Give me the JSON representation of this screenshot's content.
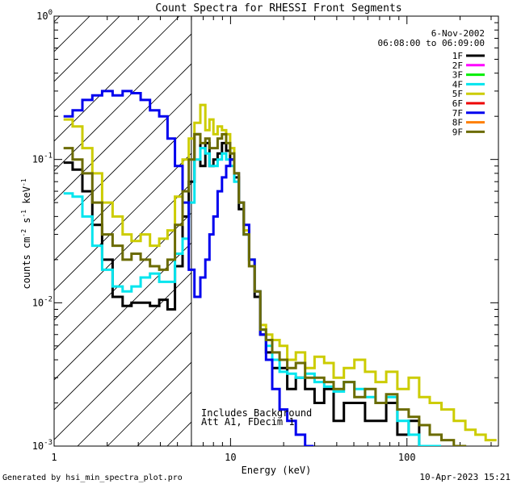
{
  "chart_data": {
    "type": "line",
    "title": "Count Spectra for RHESSI Front Segments",
    "xlabel": "Energy (keV)",
    "ylabel_parts": {
      "counts": "counts cm",
      "cm_exp": "-2",
      "s": " s",
      "s_exp": "-1",
      "kev": " keV",
      "kev_exp": "-1"
    },
    "xscale": "log",
    "yscale": "log",
    "xlim": [
      1,
      330
    ],
    "ylim": [
      0.001,
      1
    ],
    "x_ticks": [
      {
        "value": 1,
        "label": "1"
      },
      {
        "value": 10,
        "label": "10"
      },
      {
        "value": 100,
        "label": "100"
      }
    ],
    "y_ticks": [
      {
        "value": 0.001,
        "base": "10",
        "exp": "-3"
      },
      {
        "value": 0.01,
        "base": "10",
        "exp": "-2"
      },
      {
        "value": 0.1,
        "base": "10",
        "exp": "-1"
      },
      {
        "value": 1,
        "base": "10",
        "exp": "0"
      }
    ],
    "shaded_region": {
      "x_from": 1,
      "x_to": 6,
      "style": "diagonal hatch",
      "boundary_line_at": 6
    },
    "header_lines": [
      "6-Nov-2002",
      "06:08:00 to 06:09:00"
    ],
    "annotations": [
      "Includes Background",
      "Att A1, FDecim 1"
    ],
    "legend_position": "top-right",
    "series": [
      {
        "name": "1F",
        "color": "#000000",
        "x": [
          1.2,
          1.35,
          1.55,
          1.75,
          2.0,
          2.3,
          2.6,
          2.9,
          3.3,
          3.7,
          4.2,
          4.6,
          5.1,
          5.6,
          6.0,
          6.5,
          7.0,
          7.4,
          7.8,
          8.2,
          8.7,
          9.2,
          9.7,
          10.2,
          10.8,
          11.5,
          12.3,
          13.2,
          14.2,
          15.3,
          16.5,
          18.0,
          20,
          22,
          25,
          28,
          32,
          36,
          41,
          47,
          54,
          62,
          71,
          82,
          95,
          110,
          125,
          145
        ],
        "y": [
          0.095,
          0.085,
          0.06,
          0.035,
          0.02,
          0.011,
          0.0095,
          0.01,
          0.01,
          0.0095,
          0.0105,
          0.009,
          0.018,
          0.04,
          0.07,
          0.15,
          0.09,
          0.13,
          0.09,
          0.1,
          0.11,
          0.13,
          0.115,
          0.1,
          0.075,
          0.045,
          0.03,
          0.018,
          0.011,
          0.006,
          0.0045,
          0.0035,
          0.0035,
          0.0025,
          0.003,
          0.0025,
          0.002,
          0.0025,
          0.0015,
          0.002,
          0.002,
          0.0015,
          0.0015,
          0.002,
          0.0012,
          0.0015,
          0.001,
          0.001
        ]
      },
      {
        "name": "2F",
        "color": "#ff00ff",
        "x": [],
        "y": []
      },
      {
        "name": "3F",
        "color": "#00ee00",
        "x": [],
        "y": []
      },
      {
        "name": "4F",
        "color": "#00e5ee",
        "x": [
          1.2,
          1.35,
          1.55,
          1.75,
          2.0,
          2.3,
          2.6,
          2.9,
          3.3,
          3.7,
          4.2,
          4.6,
          5.1,
          5.6,
          6.0,
          6.5,
          7.0,
          7.4,
          7.8,
          8.2,
          8.7,
          9.2,
          9.7,
          10.2,
          10.8,
          11.5,
          12.3,
          13.2,
          14.2,
          15.3,
          16.5,
          18.0,
          20,
          22,
          25,
          28,
          32,
          36,
          41,
          47,
          54,
          62,
          71,
          82,
          95,
          110,
          125,
          145
        ],
        "y": [
          0.058,
          0.055,
          0.04,
          0.025,
          0.017,
          0.013,
          0.012,
          0.013,
          0.015,
          0.016,
          0.014,
          0.014,
          0.022,
          0.028,
          0.05,
          0.1,
          0.12,
          0.11,
          0.09,
          0.09,
          0.1,
          0.11,
          0.1,
          0.09,
          0.07,
          0.05,
          0.03,
          0.02,
          0.012,
          0.0065,
          0.005,
          0.004,
          0.0033,
          0.0032,
          0.003,
          0.0032,
          0.0028,
          0.0026,
          0.0024,
          0.0028,
          0.0025,
          0.0022,
          0.002,
          0.0022,
          0.0015,
          0.0012,
          0.001,
          0.001
        ]
      },
      {
        "name": "5F",
        "color": "#cccc00",
        "x": [
          1.2,
          1.35,
          1.55,
          1.75,
          2.0,
          2.3,
          2.6,
          2.9,
          3.3,
          3.7,
          4.2,
          4.6,
          5.1,
          5.6,
          6.0,
          6.5,
          7.0,
          7.4,
          7.8,
          8.2,
          8.7,
          9.2,
          9.7,
          10.2,
          10.8,
          11.5,
          12.3,
          13.2,
          14.2,
          15.3,
          16.5,
          18.0,
          20,
          22,
          25,
          28,
          32,
          36,
          41,
          47,
          54,
          62,
          71,
          82,
          95,
          110,
          125,
          145,
          170,
          200,
          230,
          260,
          300
        ],
        "y": [
          0.19,
          0.17,
          0.12,
          0.08,
          0.05,
          0.04,
          0.03,
          0.027,
          0.03,
          0.025,
          0.028,
          0.032,
          0.055,
          0.1,
          0.14,
          0.18,
          0.24,
          0.16,
          0.19,
          0.15,
          0.17,
          0.16,
          0.15,
          0.12,
          0.08,
          0.05,
          0.032,
          0.02,
          0.012,
          0.007,
          0.006,
          0.0055,
          0.005,
          0.004,
          0.0045,
          0.0035,
          0.0042,
          0.0038,
          0.003,
          0.0035,
          0.004,
          0.0033,
          0.0028,
          0.0033,
          0.0025,
          0.003,
          0.0022,
          0.002,
          0.0018,
          0.0015,
          0.0013,
          0.0012,
          0.0011
        ]
      },
      {
        "name": "6F",
        "color": "#ee0000",
        "x": [],
        "y": []
      },
      {
        "name": "7F",
        "color": "#0000ee",
        "x": [
          1.2,
          1.35,
          1.55,
          1.75,
          2.0,
          2.3,
          2.6,
          2.9,
          3.3,
          3.7,
          4.2,
          4.6,
          5.1,
          5.6,
          6.0,
          6.5,
          7.0,
          7.4,
          7.8,
          8.2,
          8.7,
          9.2,
          9.7,
          10.2,
          10.8,
          11.5,
          12.3,
          13.2,
          14.2,
          15.3,
          16.5,
          18.0,
          20,
          22,
          25,
          28
        ],
        "y": [
          0.2,
          0.22,
          0.26,
          0.28,
          0.3,
          0.28,
          0.3,
          0.29,
          0.26,
          0.22,
          0.2,
          0.14,
          0.09,
          0.05,
          0.017,
          0.011,
          0.015,
          0.02,
          0.03,
          0.04,
          0.06,
          0.075,
          0.09,
          0.1,
          0.08,
          0.05,
          0.035,
          0.02,
          0.012,
          0.006,
          0.004,
          0.0025,
          0.0018,
          0.0015,
          0.0012,
          0.001
        ]
      },
      {
        "name": "8F",
        "color": "#ff7f00",
        "x": [],
        "y": []
      },
      {
        "name": "9F",
        "color": "#6b6b00",
        "x": [
          1.2,
          1.35,
          1.55,
          1.75,
          2.0,
          2.3,
          2.6,
          2.9,
          3.3,
          3.7,
          4.2,
          4.6,
          5.1,
          5.6,
          6.0,
          6.5,
          7.0,
          7.4,
          7.8,
          8.2,
          8.7,
          9.2,
          9.7,
          10.2,
          10.8,
          11.5,
          12.3,
          13.2,
          14.2,
          15.3,
          16.5,
          18.0,
          20,
          22,
          25,
          28,
          32,
          36,
          41,
          47,
          54,
          62,
          71,
          82,
          95,
          110,
          125,
          145,
          170,
          200
        ],
        "y": [
          0.12,
          0.1,
          0.08,
          0.05,
          0.03,
          0.025,
          0.02,
          0.022,
          0.02,
          0.018,
          0.017,
          0.02,
          0.035,
          0.06,
          0.1,
          0.15,
          0.13,
          0.14,
          0.12,
          0.12,
          0.14,
          0.15,
          0.13,
          0.11,
          0.08,
          0.05,
          0.03,
          0.018,
          0.012,
          0.0065,
          0.0055,
          0.0045,
          0.004,
          0.0035,
          0.0038,
          0.003,
          0.003,
          0.0028,
          0.0025,
          0.0028,
          0.0022,
          0.0025,
          0.002,
          0.0023,
          0.0018,
          0.0016,
          0.0014,
          0.0012,
          0.0011,
          0.001
        ]
      }
    ]
  },
  "footer": {
    "generated_by": "Generated by hsi_min_spectra_plot.pro",
    "timestamp": "10-Apr-2023 15:21"
  }
}
